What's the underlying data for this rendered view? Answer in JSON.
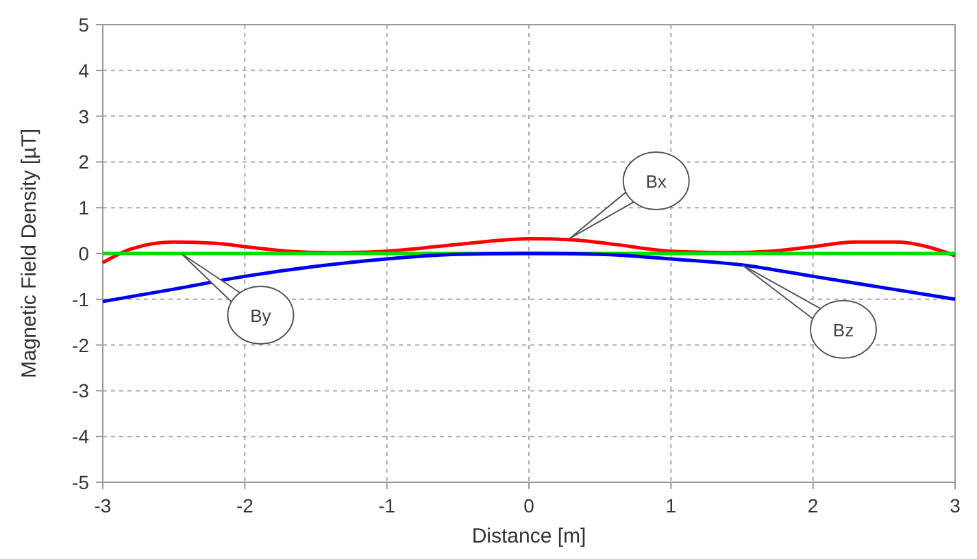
{
  "chart_data": {
    "type": "line",
    "xlabel": "Distance [m]",
    "ylabel": "Magnetic Field Density [µT]",
    "xlim": [
      -3,
      3
    ],
    "xticks": [
      -3,
      -2,
      -1,
      0,
      1,
      2,
      3
    ],
    "ylim": [
      -5,
      5
    ],
    "yticks": [
      -5,
      -4,
      -3,
      -2,
      -1,
      0,
      1,
      2,
      3,
      4,
      5
    ],
    "grid": true,
    "line_style": "solid",
    "marker": "none",
    "series": [
      {
        "color": "#ff0000",
        "x": [
          -3,
          -2.8,
          -2.5,
          -2.2,
          -2,
          -1.7,
          -1.4,
          -1,
          -0.5,
          0,
          0.3,
          0.6,
          1,
          1.4,
          1.7,
          2,
          2.3,
          2.6,
          2.8,
          3
        ],
        "values": [
          -0.2,
          0.1,
          0.25,
          0.22,
          0.15,
          0.05,
          0.02,
          0.05,
          0.2,
          0.32,
          0.3,
          0.2,
          0.05,
          0.02,
          0.05,
          0.15,
          0.25,
          0.25,
          0.15,
          -0.05
        ]
      },
      {
        "color": "#00dd00",
        "x": [
          -3,
          -2.45,
          0,
          3
        ],
        "values": [
          0,
          0,
          0,
          0
        ]
      },
      {
        "color": "#0000ee",
        "x": [
          -3,
          -2.5,
          -2,
          -1.5,
          -1,
          -0.5,
          0,
          0.5,
          1,
          1.5,
          2,
          2.5,
          3
        ],
        "values": [
          -1.05,
          -0.78,
          -0.5,
          -0.28,
          -0.12,
          -0.02,
          0,
          -0.02,
          -0.12,
          -0.25,
          -0.5,
          -0.75,
          -1.0
        ]
      }
    ],
    "annotations": [
      "Bx",
      "By",
      "Bz"
    ]
  }
}
